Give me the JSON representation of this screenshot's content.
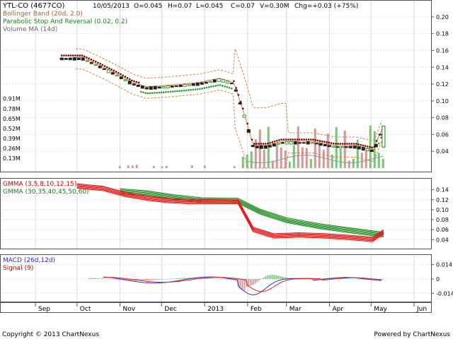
{
  "header": {
    "symbol": "YTL-CO (4677CO)",
    "date": "10/05/2013",
    "open": "O=0.045",
    "high": "H=0.07",
    "low": "L=0.045",
    "close": "C=0.07",
    "volume": "V=0.30M",
    "change": "Chg=+0.03 (+75%)"
  },
  "footer": {
    "copyright": "Copyright © 2013 ChartNexus",
    "powered": "Powered by ChartNexus"
  },
  "colors": {
    "price_up": "#2e9b2e",
    "price_down": "#222222",
    "bollinger": "#c8873c",
    "sar": "#7a0000",
    "volume_up": "#7dbf7d",
    "volume_down": "#c99a9a",
    "volume_ma": "#8a9a8a",
    "gmma_short": "#e02020",
    "gmma_long": "#1f8a1f",
    "macd": "#3030c0",
    "signal": "#e02020"
  },
  "chart_data": [
    {
      "type": "candlestick",
      "panel": "price",
      "legend": [
        "Bollinger Band (20d, 2.0)",
        "Parabolic Stop And Reversal (0.02, 0.2)",
        "Volume MA (14d)"
      ],
      "y_ticks": [
        "0.20",
        "0.18",
        "0.16",
        "0.14",
        "0.12",
        "0.10",
        "0.08",
        "0.06",
        "0.04"
      ],
      "volume_ticks": [
        "0.91M",
        "0.78M",
        "0.65M",
        "0.52M",
        "0.39M",
        "0.26M",
        "0.13M"
      ],
      "ylim": [
        0.02,
        0.21
      ],
      "price_path": [
        [
          "2012-09-20",
          0.15
        ],
        [
          "2012-10-05",
          0.15
        ],
        [
          "2012-10-18",
          0.14
        ],
        [
          "2012-10-30",
          0.13
        ],
        [
          "2012-11-10",
          0.12
        ],
        [
          "2012-11-20",
          0.115
        ],
        [
          "2012-12-01",
          0.116
        ],
        [
          "2012-12-15",
          0.118
        ],
        [
          "2012-12-28",
          0.12
        ],
        [
          "2013-01-12",
          0.125
        ],
        [
          "2013-01-22",
          0.12
        ],
        [
          "2013-01-30",
          0.08
        ],
        [
          "2013-02-05",
          0.045
        ],
        [
          "2013-02-15",
          0.045
        ],
        [
          "2013-02-25",
          0.05
        ],
        [
          "2013-03-08",
          0.05
        ],
        [
          "2013-03-20",
          0.05
        ],
        [
          "2013-04-05",
          0.045
        ],
        [
          "2013-04-20",
          0.045
        ],
        [
          "2013-05-03",
          0.04
        ],
        [
          "2013-05-10",
          0.07
        ]
      ],
      "x_ticks": [
        "Sep",
        "Oct",
        "Nov",
        "Dec",
        "2013",
        "Feb",
        "Mar",
        "Apr",
        "May",
        "Jun"
      ]
    },
    {
      "type": "line",
      "panel": "gmma",
      "legend": [
        "GMMA (3,5,8,10,12,15)",
        "GMMA (30,35,40,45,50,60)"
      ],
      "y_ticks": [
        "0.14",
        "0.12",
        "0.10",
        "0.08",
        "0.06",
        "0.04"
      ],
      "ylim": [
        0.025,
        0.155
      ],
      "short_path": [
        [
          "2012-10-01",
          0.147
        ],
        [
          "2012-10-20",
          0.142
        ],
        [
          "2012-11-05",
          0.13
        ],
        [
          "2012-11-20",
          0.123
        ],
        [
          "2012-12-05",
          0.118
        ],
        [
          "2012-12-20",
          0.116
        ],
        [
          "2013-01-05",
          0.116
        ],
        [
          "2013-01-25",
          0.116
        ],
        [
          "2013-02-05",
          0.06
        ],
        [
          "2013-02-20",
          0.047
        ],
        [
          "2013-03-10",
          0.049
        ],
        [
          "2013-03-30",
          0.047
        ],
        [
          "2013-04-20",
          0.043
        ],
        [
          "2013-05-02",
          0.04
        ],
        [
          "2013-05-10",
          0.055
        ]
      ],
      "long_path": [
        [
          "2012-11-01",
          0.136
        ],
        [
          "2012-11-20",
          0.132
        ],
        [
          "2012-12-10",
          0.124
        ],
        [
          "2012-12-30",
          0.118
        ],
        [
          "2013-01-25",
          0.117
        ],
        [
          "2013-02-10",
          0.095
        ],
        [
          "2013-03-01",
          0.078
        ],
        [
          "2013-03-25",
          0.066
        ],
        [
          "2013-04-15",
          0.058
        ],
        [
          "2013-05-10",
          0.049
        ]
      ]
    },
    {
      "type": "bar",
      "panel": "macd",
      "legend": [
        "MACD (26d,12d)",
        "Signal (9)"
      ],
      "y_ticks": [
        "0.014",
        "0",
        "-0.014"
      ],
      "ylim": [
        -0.02,
        0.02
      ]
    }
  ]
}
